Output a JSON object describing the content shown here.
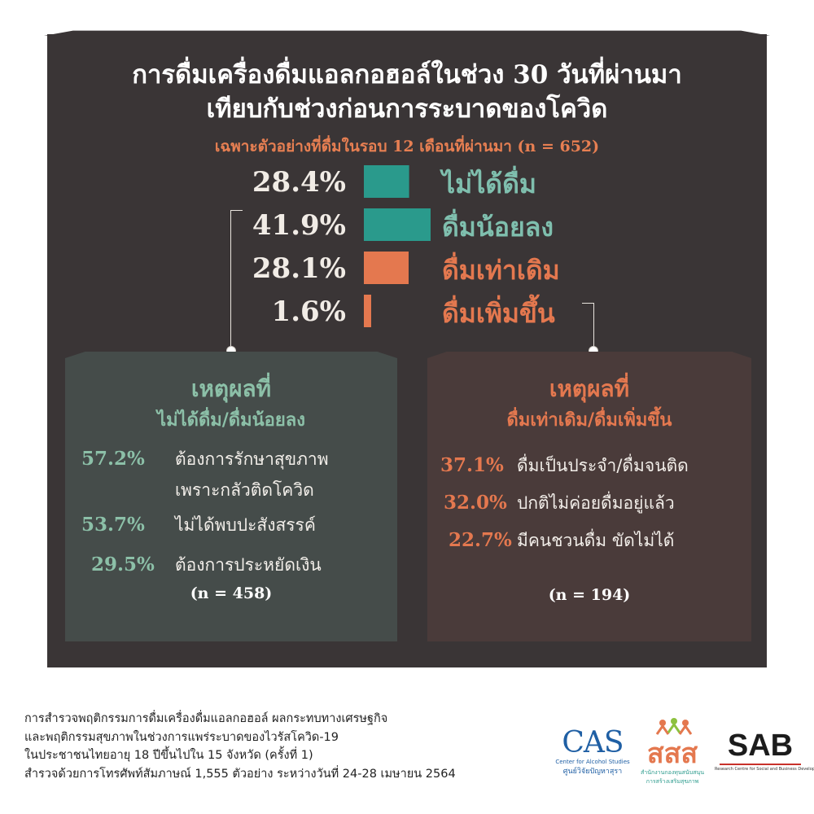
{
  "header": {
    "title_line1": "การดื่มเครื่องดื่มแอลกอฮอล์ในช่วง 30 วันที่ผ่านมา",
    "title_line2": "เทียบกับช่วงก่อนการระบาดของโควิด",
    "subtitle": "เฉพาะตัวอย่างที่ดื่มในรอบ 12 เดือนที่ผ่านมา (n = 652)"
  },
  "chart_data": {
    "type": "bar",
    "orientation": "horizontal",
    "categories": [
      "ไม่ได้ดื่ม",
      "ดื่มน้อยลง",
      "ดื่มเท่าเดิม",
      "ดื่มเพิ่มขึ้น"
    ],
    "values": [
      28.4,
      41.9,
      28.1,
      1.6
    ],
    "value_labels": [
      "28.4%",
      "41.9%",
      "28.1%",
      "1.6%"
    ],
    "colors": [
      "#2a9a8c",
      "#2a9a8c",
      "#e4784f",
      "#e4784f"
    ],
    "label_colors": [
      "#7fbfae",
      "#7fbfae",
      "#e4784f",
      "#e4784f"
    ],
    "unit": "%"
  },
  "left_box": {
    "title_line1": "เหตุผลที่",
    "title_line2": "ไม่ได้ดื่ม/ดื่มน้อยลง",
    "accent": "#8cc0a8",
    "reasons": [
      {
        "pct": "57.2%",
        "text_line1": "ต้องการรักษาสุขภาพ",
        "text_line2": "เพราะกลัวติดโควิด"
      },
      {
        "pct": "53.7%",
        "text_line1": "ไม่ได้พบปะสังสรรค์"
      },
      {
        "pct": "29.5%",
        "text_line1": "ต้องการประหยัดเงิน"
      }
    ],
    "n_note": "(n = 458)"
  },
  "right_box": {
    "title_line1": "เหตุผลที่",
    "title_line2": "ดื่มเท่าเดิม/ดื่มเพิ่มขึ้น",
    "accent": "#e4784f",
    "reasons": [
      {
        "pct": "37.1%",
        "text_line1": "ดื่มเป็นประจำ/ดื่มจนติด"
      },
      {
        "pct": "32.0%",
        "text_line1": "ปกติไม่ค่อยดื่มอยู่แล้ว"
      },
      {
        "pct": "22.7%",
        "text_line1": "มีคนชวนดื่ม ขัดไม่ได้"
      }
    ],
    "n_note": "(n = 194)"
  },
  "footer": {
    "line1": "การสำรวจพฤติกรรมการดื่มเครื่องดื่มแอลกอฮอล์ ผลกระทบทางเศรษฐกิจ",
    "line2": "และพฤติกรรมสุขภาพในช่วงการแพร่ระบาดของไวรัสโควิด-19",
    "line3": "ในประชาชนไทยอายุ 18 ปีขึ้นไปใน 15 จังหวัด (ครั้งที่ 1)",
    "line4": "สำรวจด้วยการโทรศัพท์สัมภาษณ์ 1,555 ตัวอย่าง ระหว่างวันที่ 24-28 เมษายน 2564"
  },
  "logos": {
    "cas": {
      "mark": "CAS",
      "line1": "Center for Alcohol Studies",
      "line2": "ศูนย์วิจัยปัญหาสุรา"
    },
    "thaihealth": {
      "mark": "สสส",
      "line1": "สำนักงานกองทุนสนับสนุน",
      "line2": "การสร้างเสริมสุขภาพ"
    },
    "sab": {
      "mark": "SAB",
      "line1": "Research Centre for Social and Business Development Co.,Ltd."
    }
  }
}
